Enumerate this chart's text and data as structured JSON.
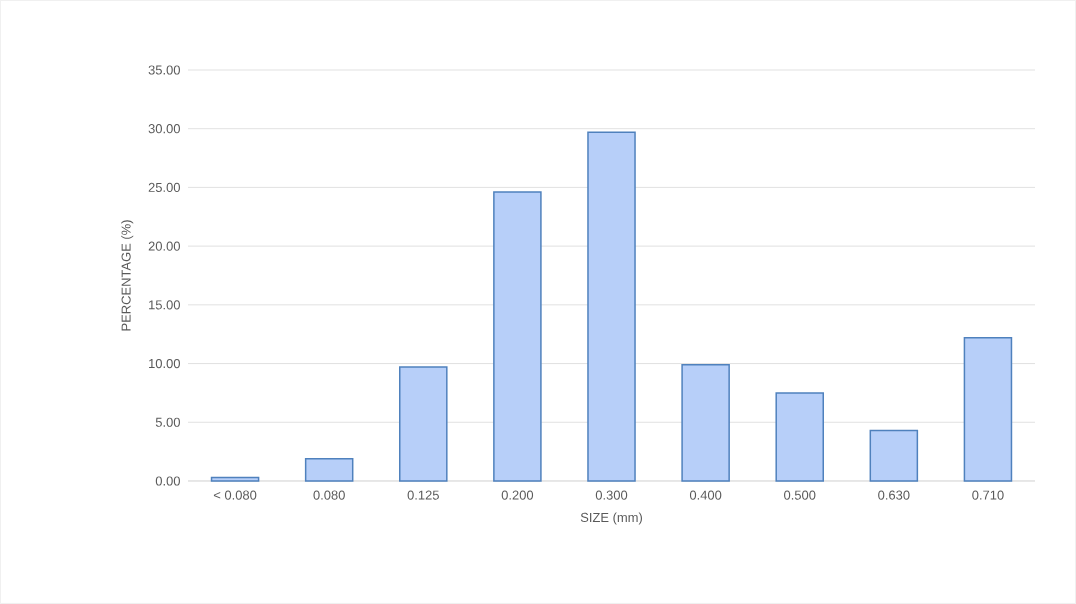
{
  "chart_data": {
    "type": "bar",
    "xlabel": "SIZE (mm)",
    "ylabel": "PERCENTAGE (%)",
    "categories": [
      "< 0.080",
      "0.080",
      "0.125",
      "0.200",
      "0.300",
      "0.400",
      "0.500",
      "0.630",
      "0.710"
    ],
    "values": [
      0.3,
      1.9,
      9.7,
      24.6,
      29.7,
      9.9,
      7.5,
      4.3,
      12.2
    ],
    "color": "#b7cff9",
    "ylim": [
      0,
      35
    ],
    "yticks": [
      {
        "value": 0,
        "label": "0.00"
      },
      {
        "value": 5,
        "label": "5.00"
      },
      {
        "value": 10,
        "label": "10.00"
      },
      {
        "value": 15,
        "label": "15.00"
      },
      {
        "value": 20,
        "label": "20.00"
      },
      {
        "value": 25,
        "label": "25.00"
      },
      {
        "value": 30,
        "label": "30.00"
      },
      {
        "value": 35,
        "label": "35.00"
      }
    ],
    "grid": "y"
  }
}
